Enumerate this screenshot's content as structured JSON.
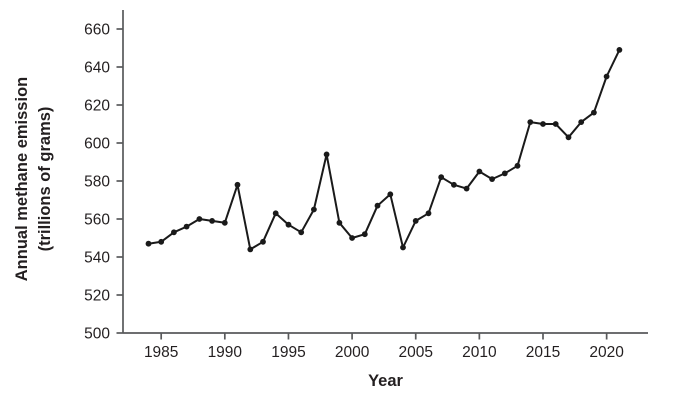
{
  "chart_data": {
    "type": "line",
    "title": "",
    "xlabel": "Year",
    "ylabel": "Annual methane emission (trillions of grams)",
    "ylabel_line1": "Annual methane emission",
    "ylabel_line2": "(trillions of grams)",
    "series_name": "Annual methane emission",
    "x": [
      1984,
      1985,
      1986,
      1987,
      1988,
      1989,
      1990,
      1991,
      1992,
      1993,
      1994,
      1995,
      1996,
      1997,
      1998,
      1999,
      2000,
      2001,
      2002,
      2003,
      2004,
      2005,
      2006,
      2007,
      2008,
      2009,
      2010,
      2011,
      2012,
      2013,
      2014,
      2015,
      2016,
      2017,
      2018,
      2019,
      2020,
      2021
    ],
    "values": [
      547,
      548,
      553,
      556,
      560,
      559,
      558,
      578,
      544,
      548,
      563,
      557,
      553,
      565,
      594,
      558,
      550,
      552,
      567,
      573,
      545,
      559,
      563,
      582,
      578,
      576,
      585,
      581,
      584,
      588,
      611,
      610,
      610,
      603,
      611,
      616,
      635,
      649
    ],
    "x_ticks": [
      1985,
      1990,
      1995,
      2000,
      2005,
      2010,
      2015,
      2020
    ],
    "y_ticks": [
      500,
      520,
      540,
      560,
      580,
      600,
      620,
      640,
      660
    ],
    "xlim": [
      1982,
      2023.25
    ],
    "ylim": [
      500,
      670
    ],
    "grid": false,
    "legend": "none",
    "marker": "circle",
    "line_color": "#1a1a1a",
    "marker_color": "#1a1a1a",
    "axis_color": "#58595b",
    "text_color": "#231f20"
  }
}
